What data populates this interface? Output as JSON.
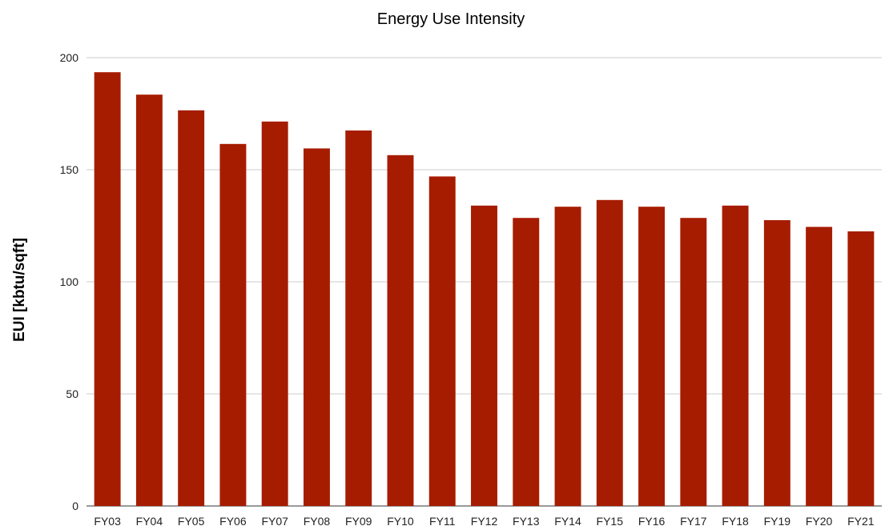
{
  "chart_data": {
    "type": "bar",
    "title": "Energy Use Intensity",
    "xlabel": "",
    "ylabel": "EUI [kbtu/sqft]",
    "categories": [
      "FY03",
      "FY04",
      "FY05",
      "FY06",
      "FY07",
      "FY08",
      "FY09",
      "FY10",
      "FY11",
      "FY12",
      "FY13",
      "FY14",
      "FY15",
      "FY16",
      "FY17",
      "FY18",
      "FY19",
      "FY20",
      "FY21"
    ],
    "values": [
      193.5,
      183.5,
      176.5,
      161.5,
      171.5,
      159.5,
      167.5,
      156.5,
      147,
      134,
      128.5,
      133.5,
      136.5,
      133.5,
      128.5,
      134,
      127.5,
      124.5,
      122.5
    ],
    "ylim": [
      0,
      200
    ],
    "yticks": [
      0,
      50,
      100,
      150,
      200
    ],
    "grid": true,
    "legend": "none",
    "bar_color": "#a61c00"
  }
}
